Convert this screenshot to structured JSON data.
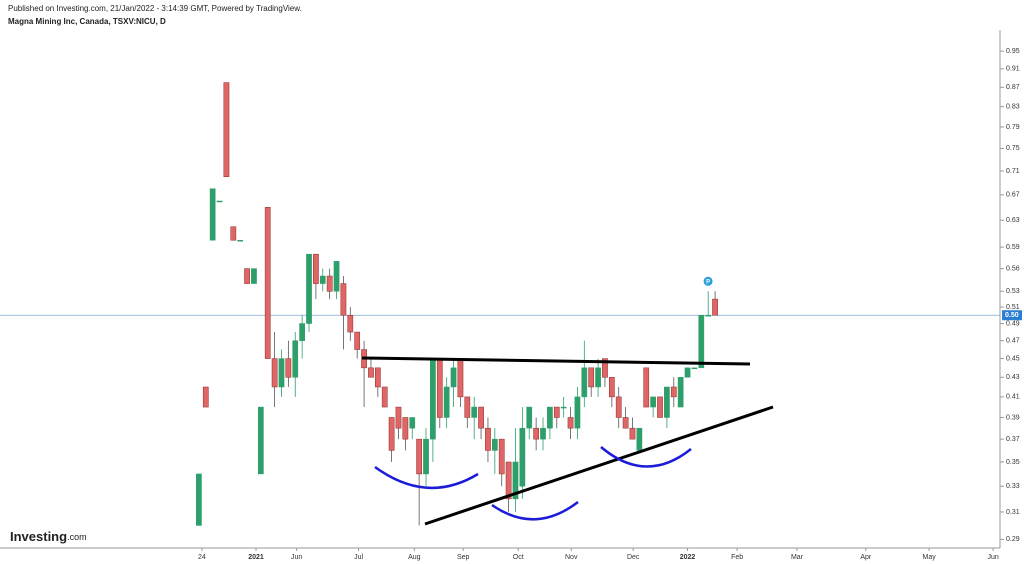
{
  "header": {
    "published": "Published on Investing.com, 21/Jan/2022 - 3:14:39 GMT, Powered by TradingView.",
    "symbol": "Magna Mining Inc, Canada, TSXV:NICU, D",
    "logo": "Investing",
    "logo_suffix": ".com"
  },
  "chart_data": {
    "type": "candlestick",
    "open": [
      0.3,
      0.42,
      0.6,
      0.66,
      0.88,
      0.62,
      0.6,
      0.56,
      0.54,
      0.34,
      0.65,
      0.45,
      0.42,
      0.45,
      0.43,
      0.47,
      0.49,
      0.58,
      0.54,
      0.55,
      0.53,
      0.54,
      0.5,
      0.48,
      0.46,
      0.44,
      0.44,
      0.42,
      0.39,
      0.4,
      0.39,
      0.38,
      0.37,
      0.34,
      0.37,
      0.45,
      0.39,
      0.42,
      0.45,
      0.41,
      0.39,
      0.4,
      0.38,
      0.36,
      0.37,
      0.35,
      0.32,
      0.33,
      0.38,
      0.38,
      0.37,
      0.38,
      0.4,
      0.4,
      0.39,
      0.38,
      0.41,
      0.44,
      0.42,
      0.45,
      0.43,
      0.41,
      0.39,
      0.38,
      0.36,
      0.44,
      0.4,
      0.41,
      0.39,
      0.42,
      0.4,
      0.43,
      0.44,
      0.44,
      0.5,
      0.52
    ],
    "high": [
      0.34,
      0.42,
      0.68,
      0.66,
      0.88,
      0.62,
      0.6,
      0.56,
      0.56,
      0.4,
      0.65,
      0.48,
      0.46,
      0.47,
      0.48,
      0.5,
      0.58,
      0.58,
      0.56,
      0.56,
      0.57,
      0.55,
      0.51,
      0.48,
      0.47,
      0.45,
      0.44,
      0.42,
      0.39,
      0.4,
      0.39,
      0.39,
      0.37,
      0.38,
      0.45,
      0.45,
      0.43,
      0.45,
      0.45,
      0.41,
      0.41,
      0.4,
      0.39,
      0.38,
      0.37,
      0.35,
      0.38,
      0.4,
      0.4,
      0.39,
      0.39,
      0.4,
      0.4,
      0.41,
      0.4,
      0.42,
      0.47,
      0.44,
      0.45,
      0.45,
      0.43,
      0.42,
      0.4,
      0.39,
      0.38,
      0.44,
      0.41,
      0.41,
      0.42,
      0.43,
      0.43,
      0.44,
      0.44,
      0.5,
      0.53,
      0.53
    ],
    "low": [
      0.3,
      0.4,
      0.6,
      0.66,
      0.7,
      0.6,
      0.6,
      0.54,
      0.54,
      0.34,
      0.45,
      0.4,
      0.41,
      0.42,
      0.41,
      0.45,
      0.48,
      0.52,
      0.53,
      0.52,
      0.52,
      0.46,
      0.47,
      0.45,
      0.4,
      0.43,
      0.41,
      0.4,
      0.35,
      0.37,
      0.36,
      0.37,
      0.3,
      0.33,
      0.35,
      0.38,
      0.38,
      0.4,
      0.4,
      0.38,
      0.37,
      0.37,
      0.35,
      0.34,
      0.33,
      0.31,
      0.31,
      0.32,
      0.37,
      0.36,
      0.36,
      0.37,
      0.38,
      0.39,
      0.37,
      0.37,
      0.4,
      0.41,
      0.41,
      0.42,
      0.4,
      0.38,
      0.38,
      0.37,
      0.36,
      0.4,
      0.39,
      0.39,
      0.38,
      0.4,
      0.4,
      0.43,
      0.44,
      0.44,
      0.5,
      0.5
    ],
    "close": [
      0.34,
      0.4,
      0.68,
      0.66,
      0.7,
      0.6,
      0.6,
      0.54,
      0.56,
      0.4,
      0.45,
      0.42,
      0.45,
      0.43,
      0.47,
      0.49,
      0.58,
      0.54,
      0.55,
      0.53,
      0.57,
      0.5,
      0.48,
      0.46,
      0.44,
      0.43,
      0.42,
      0.4,
      0.36,
      0.38,
      0.37,
      0.39,
      0.34,
      0.37,
      0.45,
      0.39,
      0.42,
      0.44,
      0.41,
      0.39,
      0.4,
      0.38,
      0.36,
      0.37,
      0.34,
      0.32,
      0.35,
      0.38,
      0.4,
      0.37,
      0.38,
      0.4,
      0.39,
      0.4,
      0.38,
      0.41,
      0.44,
      0.42,
      0.44,
      0.43,
      0.41,
      0.39,
      0.38,
      0.37,
      0.38,
      0.4,
      0.41,
      0.39,
      0.42,
      0.41,
      0.43,
      0.44,
      0.44,
      0.5,
      0.5,
      0.5
    ],
    "up_color": "#2e9e6b",
    "down_color": "#e06666",
    "log_scale": true,
    "ylim": [
      0.284,
      1.0
    ],
    "yticks": [
      0.29,
      0.31,
      0.33,
      0.35,
      0.37,
      0.39,
      0.41,
      0.43,
      0.45,
      0.47,
      0.49,
      0.51,
      0.53,
      0.56,
      0.59,
      0.63,
      0.67,
      0.71,
      0.75,
      0.79,
      0.83,
      0.87,
      0.91,
      0.95
    ],
    "xlim": [
      -28.9,
      116.4
    ],
    "xticks": [
      {
        "value": 0.44,
        "label": "24"
      },
      {
        "value": 8.3,
        "label": "2021"
      },
      {
        "value": 14.2,
        "label": "Jun"
      },
      {
        "value": 23.2,
        "label": "Jul"
      },
      {
        "value": 31.3,
        "label": "Aug"
      },
      {
        "value": 38.4,
        "label": "Sep"
      },
      {
        "value": 46.4,
        "label": "Oct"
      },
      {
        "value": 54.1,
        "label": "Nov"
      },
      {
        "value": 63.1,
        "label": "Dec"
      },
      {
        "value": 71.0,
        "label": "2022"
      },
      {
        "value": 78.2,
        "label": "Feb"
      },
      {
        "value": 86.9,
        "label": "Mar"
      },
      {
        "value": 96.9,
        "label": "Apr"
      },
      {
        "value": 106.1,
        "label": "May"
      },
      {
        "value": 115.4,
        "label": "Jun"
      }
    ],
    "last_price": {
      "value": 0.5,
      "label": "0.50"
    },
    "marker": "P"
  }
}
